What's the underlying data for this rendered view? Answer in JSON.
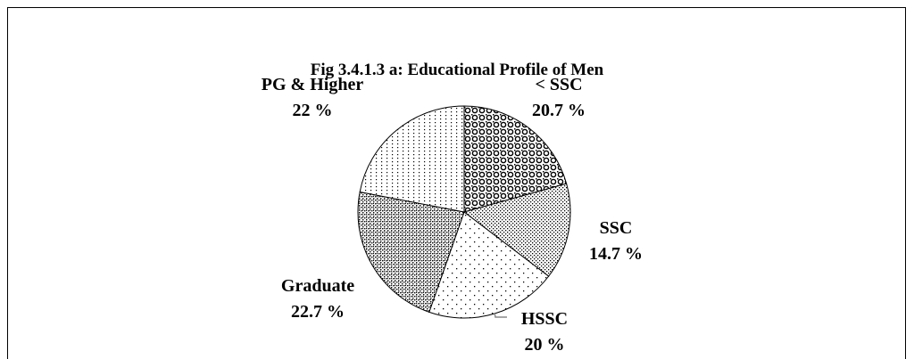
{
  "chart_data": {
    "type": "pie",
    "title": "Fig 3.4.1.3 a: Educational Profile of Men",
    "categories": [
      "< SSC",
      "SSC",
      "HSSC",
      "Graduate",
      "PG & Higher"
    ],
    "values": [
      20.7,
      14.7,
      20,
      22.7,
      22
    ],
    "value_labels": [
      "20.7 %",
      "14.7 %",
      "20 %",
      "22.7 %",
      "22 %"
    ]
  }
}
